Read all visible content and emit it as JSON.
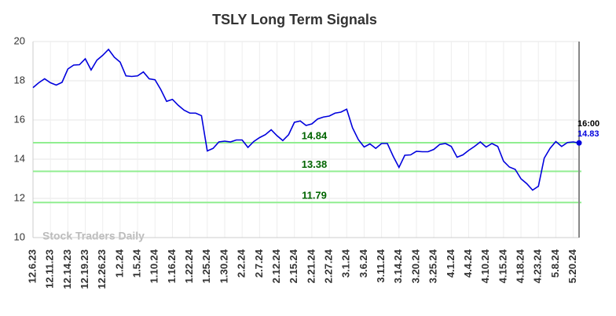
{
  "chart_data": {
    "type": "line",
    "title": "TSLY Long Term Signals",
    "watermark": "Stock Traders Daily",
    "categories": [
      "12.6.23",
      null,
      null,
      "12.11.23",
      null,
      null,
      "12.14.23",
      null,
      null,
      "12.19.23",
      null,
      null,
      "12.26.23",
      null,
      null,
      "1.2.24",
      null,
      null,
      "1.5.24",
      null,
      null,
      "1.10.24",
      null,
      null,
      "1.16.24",
      null,
      null,
      "1.22.24",
      null,
      null,
      "1.25.24",
      null,
      null,
      "1.30.24",
      null,
      null,
      "2.2.24",
      null,
      null,
      "2.7.24",
      null,
      null,
      "2.12.24",
      null,
      null,
      "2.15.24",
      null,
      null,
      "2.21.24",
      null,
      null,
      "2.27.24",
      null,
      null,
      "3.1.24",
      null,
      null,
      "3.6.24",
      null,
      null,
      "3.11.24",
      null,
      null,
      "3.14.24",
      null,
      null,
      "3.20.24",
      null,
      null,
      "3.25.24",
      null,
      null,
      "4.1.24",
      null,
      null,
      "4.4.24",
      null,
      null,
      "4.10.24",
      null,
      null,
      "4.15.24",
      null,
      null,
      "4.18.24",
      null,
      null,
      "4.23.24",
      null,
      null,
      "5.8.24",
      null,
      null,
      "5.20.24",
      null
    ],
    "series": [
      {
        "name": "TSLY",
        "color": "#0000dd",
        "values": [
          17.65,
          17.9,
          18.1,
          17.9,
          17.78,
          17.92,
          18.6,
          18.8,
          18.82,
          19.12,
          18.55,
          19.05,
          19.3,
          19.6,
          19.2,
          18.95,
          18.25,
          18.22,
          18.25,
          18.45,
          18.1,
          18.05,
          17.55,
          16.95,
          17.05,
          16.75,
          16.5,
          16.35,
          16.35,
          16.22,
          14.42,
          14.55,
          14.88,
          14.92,
          14.88,
          14.98,
          14.98,
          14.6,
          14.9,
          15.1,
          15.25,
          15.5,
          15.2,
          14.95,
          15.25,
          15.88,
          15.95,
          15.72,
          15.8,
          16.05,
          16.15,
          16.2,
          16.35,
          16.4,
          16.55,
          15.6,
          15.0,
          14.62,
          14.78,
          14.55,
          14.8,
          14.8,
          14.15,
          13.58,
          14.2,
          14.22,
          14.4,
          14.38,
          14.38,
          14.5,
          14.75,
          14.8,
          14.65,
          14.1,
          14.22,
          14.45,
          14.65,
          14.88,
          14.62,
          14.8,
          14.65,
          13.9,
          13.6,
          13.48,
          13.0,
          12.75,
          12.42,
          12.62,
          14.05,
          14.55,
          14.9,
          14.65,
          14.85,
          14.88,
          14.83
        ]
      }
    ],
    "levels": [
      14.84,
      13.38,
      11.79
    ],
    "level_color": "#90ee90",
    "level_label_color": "#006400",
    "last_time": "16:00",
    "ylim": [
      10,
      20
    ],
    "yticks": [
      10,
      12,
      14,
      16,
      18,
      20
    ],
    "grid": true
  }
}
